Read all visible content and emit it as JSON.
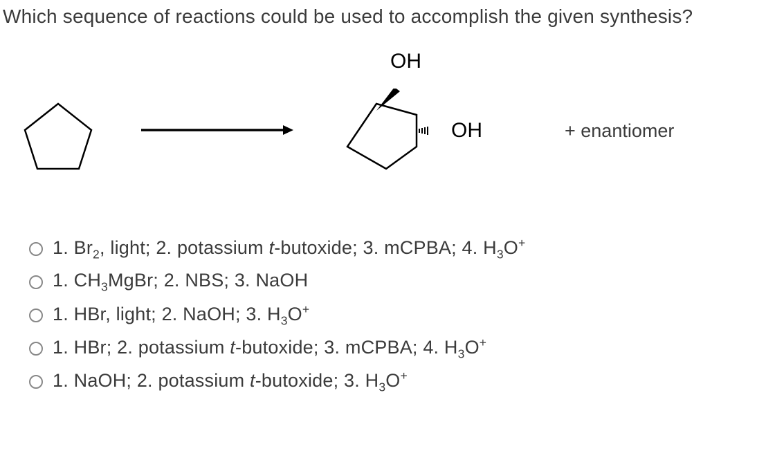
{
  "question": "Which sequence of reactions could be used to accomplish the given synthesis?",
  "diagram": {
    "label_oh_top": "OH",
    "label_oh_side": "OH",
    "enantiomer_text": "+   enantiomer",
    "pentagon_stroke": "#000000",
    "pentagon_stroke_width": 2.5,
    "arrow_stroke": "#000000",
    "wedge_fill": "#000000"
  },
  "options": [
    {
      "text_html": "1. Br<sub>2</sub>, light; 2. potassium <i>t</i>-butoxide; 3. mCPBA; 4. H<sub>3</sub>O<sup>+</sup>"
    },
    {
      "text_html": "1. CH<sub>3</sub>MgBr; 2. NBS; 3. NaOH"
    },
    {
      "text_html": "1. HBr, light; 2. NaOH; 3. H<sub>3</sub>O<sup>+</sup>"
    },
    {
      "text_html": "1. HBr; 2. potassium <i>t</i>-butoxide; 3. mCPBA; 4. H<sub>3</sub>O<sup>+</sup>"
    },
    {
      "text_html": "1. NaOH; 2. potassium <i>t</i>-butoxide; 3. H<sub>3</sub>O<sup>+</sup>"
    }
  ],
  "style": {
    "question_fontsize": 28,
    "option_fontsize": 27,
    "text_color": "#3b3b3b",
    "radio_border": "#888888",
    "background": "#ffffff"
  }
}
